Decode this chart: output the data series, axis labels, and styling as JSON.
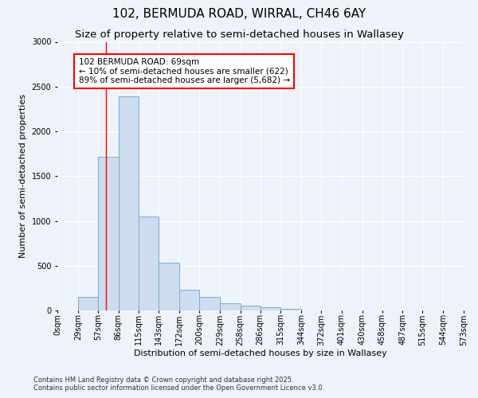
{
  "title1": "102, BERMUDA ROAD, WIRRAL, CH46 6AY",
  "title2": "Size of property relative to semi-detached houses in Wallasey",
  "xlabel": "Distribution of semi-detached houses by size in Wallasey",
  "ylabel": "Number of semi-detached properties",
  "bar_color": "#cddcee",
  "bar_edge_color": "#7aadd4",
  "bin_labels": [
    "0sqm",
    "29sqm",
    "57sqm",
    "86sqm",
    "115sqm",
    "143sqm",
    "172sqm",
    "200sqm",
    "229sqm",
    "258sqm",
    "286sqm",
    "315sqm",
    "344sqm",
    "372sqm",
    "401sqm",
    "430sqm",
    "458sqm",
    "487sqm",
    "515sqm",
    "544sqm",
    "573sqm"
  ],
  "bin_edges": [
    0,
    29,
    57,
    86,
    115,
    143,
    172,
    200,
    229,
    258,
    286,
    315,
    344,
    372,
    401,
    430,
    458,
    487,
    515,
    544,
    573
  ],
  "bar_heights": [
    0,
    150,
    1720,
    2390,
    1050,
    530,
    230,
    150,
    80,
    50,
    35,
    20,
    0,
    0,
    0,
    0,
    0,
    0,
    0,
    0
  ],
  "ylim": [
    0,
    3000
  ],
  "yticks": [
    0,
    500,
    1000,
    1500,
    2000,
    2500,
    3000
  ],
  "red_line_x": 69,
  "annotation_line1": "102 BERMUDA ROAD: 69sqm",
  "annotation_line2": "← 10% of semi-detached houses are smaller (622)",
  "annotation_line3": "89% of semi-detached houses are larger (5,682) →",
  "footnote1": "Contains HM Land Registry data © Crown copyright and database right 2025.",
  "footnote2": "Contains public sector information licensed under the Open Government Licence v3.0.",
  "background_color": "#eef2f9",
  "title_fontsize": 11,
  "subtitle_fontsize": 9.5,
  "annotation_fontsize": 7.5,
  "axis_label_fontsize": 8,
  "tick_fontsize": 7,
  "footnote_fontsize": 6,
  "ylabel_fontsize": 8
}
